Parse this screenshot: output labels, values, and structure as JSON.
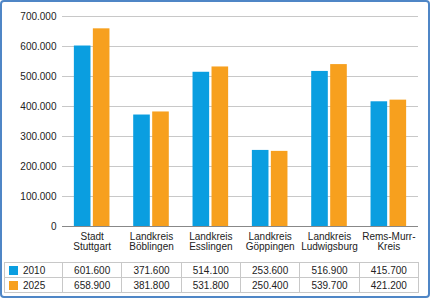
{
  "chart_data": {
    "type": "bar",
    "categories": [
      "Stadt\nStuttgart",
      "Landkreis\nBöblingen",
      "Landkreis\nEsslingen",
      "Landkreis\nGöppingen",
      "Landkreis\nLudwigsburg",
      "Rems-Murr-\nKreis"
    ],
    "series": [
      {
        "name": "2010",
        "color": "#0a9ee0",
        "values": [
          601600,
          371600,
          514100,
          253600,
          516900,
          415700
        ],
        "value_labels": [
          "601.600",
          "371.600",
          "514.100",
          "253.600",
          "516.900",
          "415.700"
        ]
      },
      {
        "name": "2025",
        "color": "#f7a01e",
        "values": [
          658900,
          381800,
          531800,
          250400,
          539700,
          421200
        ],
        "value_labels": [
          "658.900",
          "381.800",
          "531.800",
          "250.400",
          "539.700",
          "421.200"
        ]
      }
    ],
    "ylim": [
      0,
      700000
    ],
    "yticks": [
      0,
      {
        "value": 100000,
        "label": "100.000"
      },
      {
        "value": 200000,
        "label": "200.000"
      },
      {
        "value": 300000,
        "label": "300.000"
      },
      {
        "value": 400000,
        "label": "400.000"
      },
      {
        "value": 500000,
        "label": "500.000"
      },
      {
        "value": 600000,
        "label": "600.000"
      },
      {
        "value": 700000,
        "label": "700.000"
      }
    ],
    "grid": true
  }
}
